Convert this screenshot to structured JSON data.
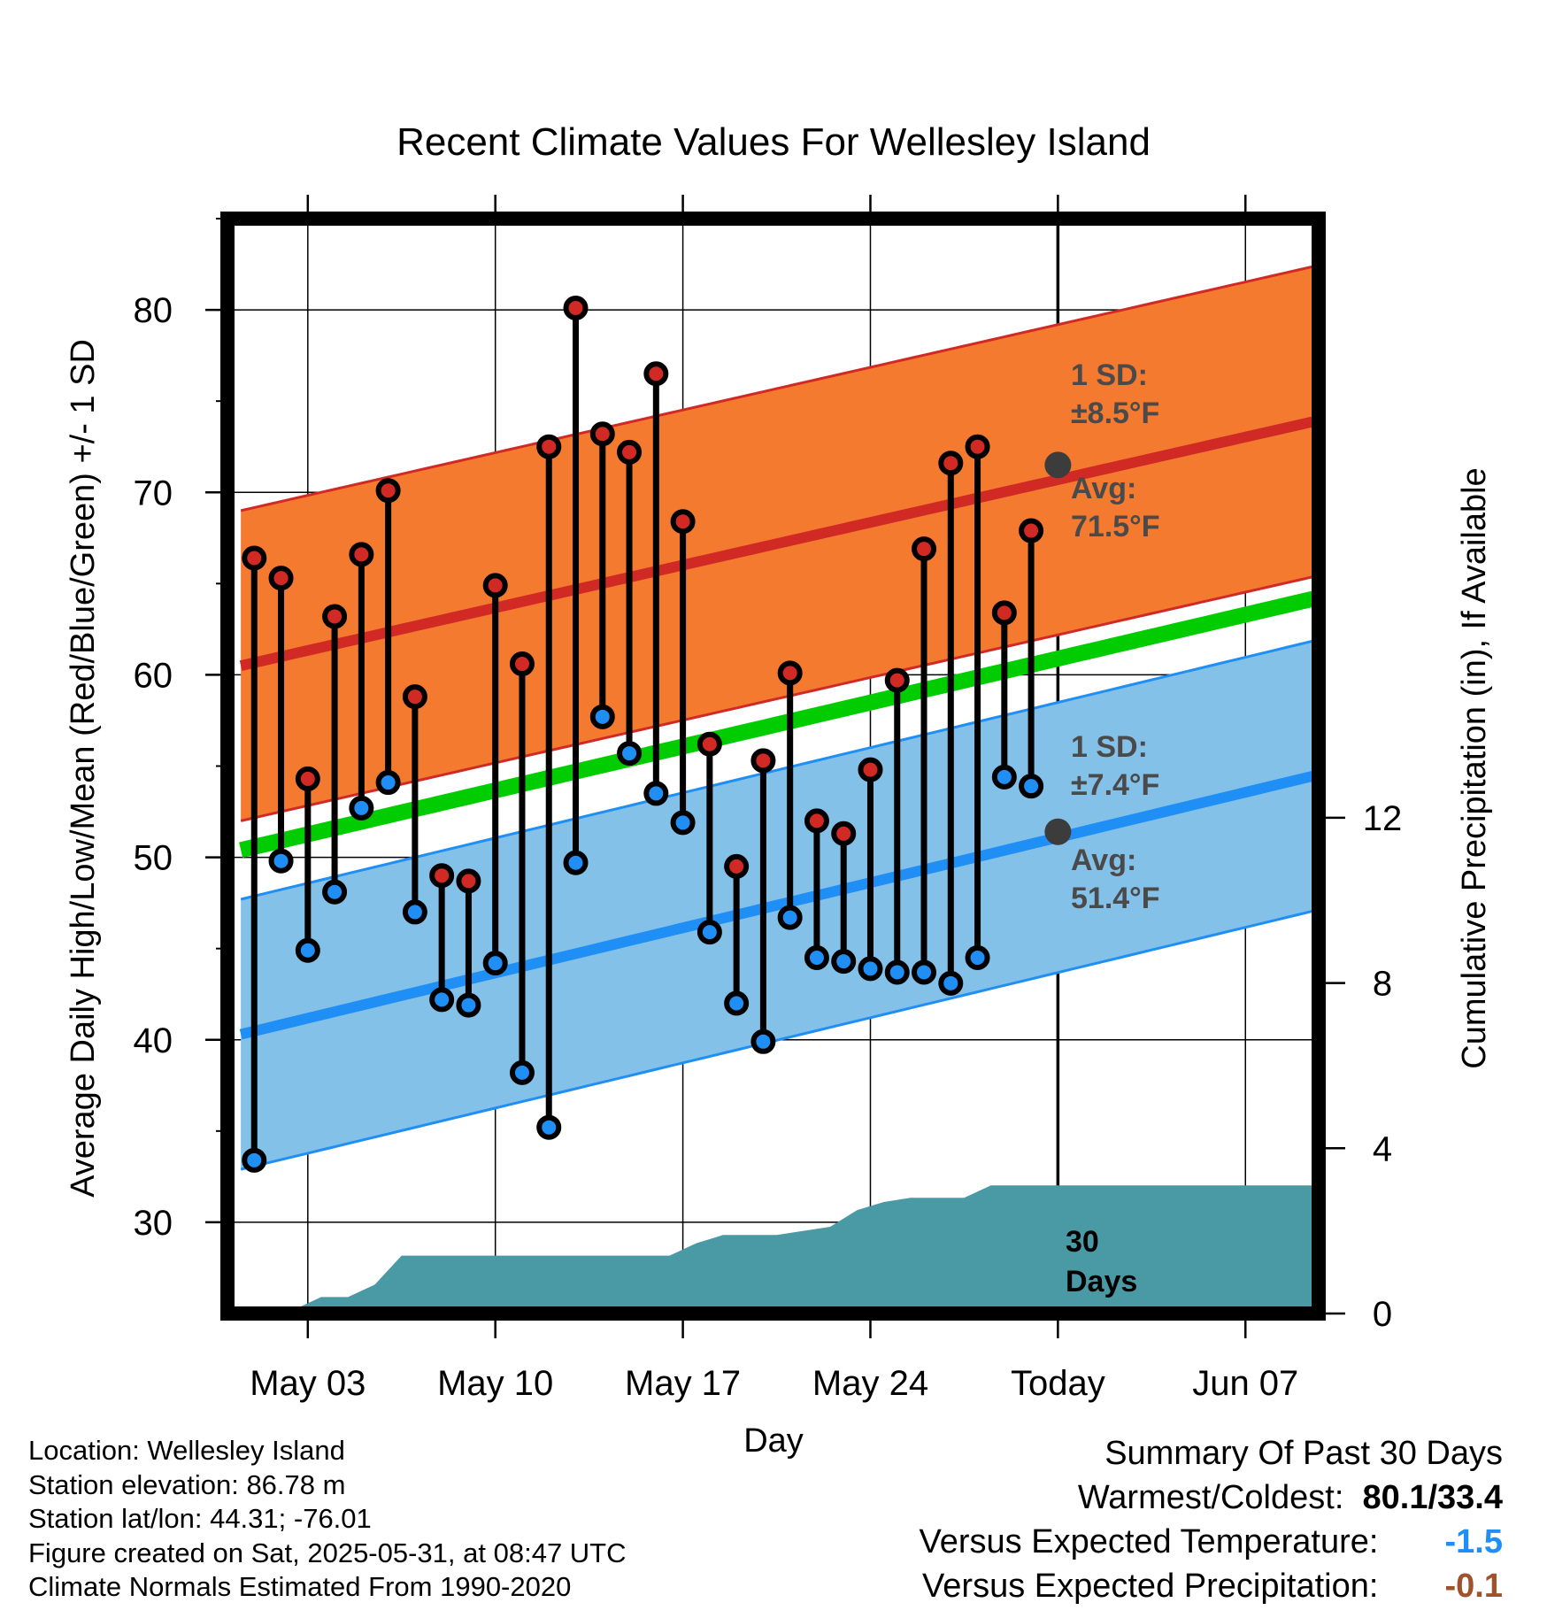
{
  "chart_data": {
    "type": "line",
    "title": "Recent Climate Values For Wellesley Island",
    "xlabel": "Day",
    "ylabel": "Average Daily High/Low/Mean (Red/Blue/Green) +/- 1 SD",
    "y2label": "Cumulative Precipitation (in), If Available",
    "ylim": [
      25,
      85
    ],
    "y2lim": [
      0,
      26.5
    ],
    "y_ticks": [
      "30",
      "40",
      "50",
      "60",
      "70",
      "80"
    ],
    "y2_ticks": [
      "0",
      "4",
      "8",
      "12"
    ],
    "x_tick_labels": [
      "May 03",
      "May 10",
      "May 17",
      "May 24",
      "Today",
      "Jun 07"
    ],
    "x_tick_days": [
      3,
      10,
      17,
      24,
      31,
      38
    ],
    "xlim": [
      0,
      41.5
    ],
    "grid": true,
    "days": [
      1,
      2,
      3,
      4,
      5,
      6,
      7,
      8,
      9,
      10,
      11,
      12,
      13,
      14,
      15,
      16,
      17,
      18,
      19,
      20,
      21,
      22,
      23,
      24,
      25,
      26,
      27,
      28,
      29,
      30
    ],
    "daily_high": [
      66.4,
      65.3,
      54.3,
      63.2,
      66.6,
      70.1,
      58.8,
      49.0,
      48.7,
      64.9,
      60.6,
      72.5,
      80.1,
      73.2,
      72.2,
      76.5,
      68.4,
      56.2,
      49.5,
      55.3,
      60.1,
      52.0,
      51.3,
      54.8,
      59.7,
      66.9,
      71.6,
      72.5,
      63.4,
      67.9
    ],
    "daily_low": [
      33.4,
      49.8,
      44.9,
      48.1,
      52.7,
      54.1,
      47.0,
      42.2,
      41.9,
      44.2,
      38.2,
      35.2,
      49.7,
      57.7,
      55.7,
      53.5,
      51.9,
      45.9,
      42.0,
      39.9,
      46.7,
      44.5,
      44.3,
      43.9,
      43.7,
      43.7,
      43.1,
      44.5,
      54.4,
      53.9
    ],
    "normal_high": {
      "start": 60.5,
      "end": 74.2,
      "today": 71.5
    },
    "normal_low": {
      "start": 40.3,
      "end": 54.8,
      "today": 51.4
    },
    "normal_mean": {
      "start": 50.4,
      "end": 64.5
    },
    "high_sd": 8.5,
    "low_sd": 7.4,
    "cumulative_precip": [
      0.0,
      0.1,
      0.1,
      0.4,
      0.4,
      0.7,
      1.4,
      1.4,
      1.4,
      1.4,
      1.4,
      1.4,
      1.4,
      1.4,
      1.4,
      1.4,
      1.4,
      1.7,
      1.9,
      1.9,
      1.9,
      2.0,
      2.1,
      2.5,
      2.7,
      2.8,
      2.8,
      2.8,
      3.1,
      3.1,
      3.1
    ],
    "annotations": {
      "high_sd_label": "1 SD:",
      "high_sd_value": "±8.5°F",
      "high_avg_label": "Avg:",
      "high_avg_value": "71.5°F",
      "low_sd_label": "1 SD:",
      "low_sd_value": "±7.4°F",
      "low_avg_label": "Avg:",
      "low_avg_value": "51.4°F",
      "period_number": "30",
      "period_unit": "Days"
    }
  },
  "footer": {
    "location": "Location: Wellesley Island",
    "elevation": "Station elevation: 86.78 m",
    "latlon": "Station lat/lon: 44.31; -76.01",
    "created": "Figure created on Sat, 2025-05-31, at 08:47 UTC",
    "normals": "Climate Normals Estimated From 1990-2020"
  },
  "summary": {
    "heading": "Summary Of Past 30 Days",
    "warm_cold_label": "Warmest/Coldest:",
    "warm_cold_value": "80.1/33.4",
    "temp_label": "Versus Expected Temperature:",
    "temp_value": "-1.5",
    "precip_label": "Versus Expected Precipitation:",
    "precip_value": "-0.1"
  },
  "colors": {
    "high_band": "#f47a30",
    "high_line": "#d12a25",
    "low_band": "#84c1e9",
    "low_line": "#1f8ef5",
    "mean_line": "#00cc00",
    "precip_fill": "#4a9aa6",
    "high_marker": "#d12a25",
    "low_marker": "#1f8ef5",
    "temp_value": "#1f8ef5",
    "precip_value": "#a0522d",
    "annotation": "#4a4a4a"
  }
}
